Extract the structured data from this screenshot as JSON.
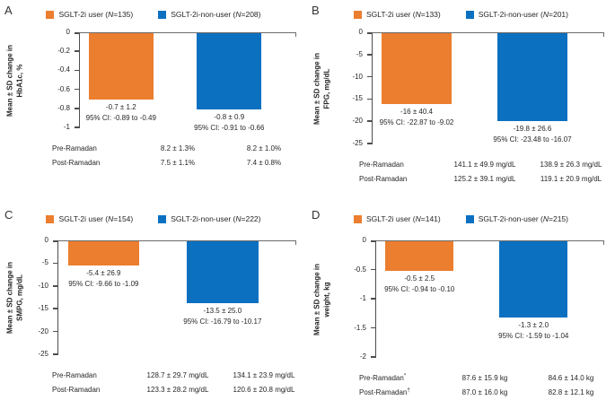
{
  "accent_colors": {
    "sglt2i_user": "#EB7E2F",
    "sglt2i_non_user": "#0B70C0",
    "axis": "#6b6b6b"
  },
  "chart_data": [
    {
      "panel": "A",
      "type": "bar",
      "title": "",
      "xlabel": "",
      "ylabel": "Mean ± SD change in HbA1c, %",
      "ylabel_lines": [
        "Mean ± SD change in",
        "HbA1c, %"
      ],
      "ylim": [
        0,
        -1
      ],
      "yticks": [
        0,
        -0.2,
        -0.4,
        -0.6,
        -0.8,
        -1
      ],
      "ytick_labels": [
        "0",
        "-0.2",
        "-0.4",
        "-0.6",
        "-0.8",
        "-1"
      ],
      "grid": false,
      "legend_position": "top",
      "categories": [
        "SGLT-2i user",
        "SGLT-2i-non-user"
      ],
      "series": [
        {
          "name": "SGLT-2i user",
          "n": "135",
          "color": "#EB7E2F",
          "value": -0.7,
          "sd": 1.2,
          "value_label": "-0.7 ± 1.2",
          "ci_label": "95% CI: -0.89 to -0.49"
        },
        {
          "name": "SGLT-2i-non-user",
          "n": "208",
          "color": "#0B70C0",
          "value": -0.8,
          "sd": 0.9,
          "value_label": "-0.8 ± 0.9",
          "ci_label": "95% CI: -0.91 to -0.66"
        }
      ],
      "table": {
        "rows": [
          {
            "label": "Pre-Ramadan",
            "values": [
              "8.2 ± 1.3%",
              "8.2 ± 1.0%"
            ]
          },
          {
            "label": "Post-Ramadan",
            "values": [
              "7.5 ± 1.1%",
              "7.4 ± 0.8%"
            ]
          }
        ]
      }
    },
    {
      "panel": "B",
      "type": "bar",
      "title": "",
      "xlabel": "",
      "ylabel": "Mean ± SD change in FPG, mg/dL",
      "ylabel_lines": [
        "Mean ± SD change in",
        "FPG, mg/dL"
      ],
      "ylim": [
        0,
        -25
      ],
      "yticks": [
        0,
        -5,
        -10,
        -15,
        -20,
        -25
      ],
      "ytick_labels": [
        "0",
        "-5",
        "-10",
        "-15",
        "-20",
        "-25"
      ],
      "grid": false,
      "legend_position": "top",
      "categories": [
        "SGLT-2i user",
        "SGLT-2i-non-user"
      ],
      "series": [
        {
          "name": "SGLT-2i user",
          "n": "133",
          "color": "#EB7E2F",
          "value": -16,
          "sd": 40.4,
          "value_label": "-16 ± 40.4",
          "ci_label": "95% CI: -22.87 to -9.02"
        },
        {
          "name": "SGLT-2i-non-user",
          "n": "201",
          "color": "#0B70C0",
          "value": -19.8,
          "sd": 26.6,
          "value_label": "-19.8 ± 26.6",
          "ci_label": "95% CI: -23.48 to -16.07"
        }
      ],
      "table": {
        "rows": [
          {
            "label": "Pre-Ramadan",
            "values": [
              "141.1 ± 49.9 mg/dL",
              "138.9 ± 26.3 mg/dL"
            ]
          },
          {
            "label": "Post-Ramadan",
            "values": [
              "125.2 ± 39.1 mg/dL",
              "119.1 ± 20.9 mg/dL"
            ]
          }
        ]
      }
    },
    {
      "panel": "C",
      "type": "bar",
      "title": "",
      "xlabel": "",
      "ylabel": "Mean ± SD change in SMPG, mg/dL",
      "ylabel_lines": [
        "Mean ± SD change in",
        "SMPG, mg/dL"
      ],
      "ylim": [
        0,
        -25
      ],
      "yticks": [
        0,
        -5,
        -10,
        -15,
        -20,
        -25
      ],
      "ytick_labels": [
        "0",
        "-5",
        "-10",
        "-15",
        "-20",
        "-25"
      ],
      "grid": false,
      "legend_position": "top",
      "categories": [
        "SGLT-2i user",
        "SGLT-2i-non-user"
      ],
      "series": [
        {
          "name": "SGLT-2i user",
          "n": "154",
          "color": "#EB7E2F",
          "value": -5.4,
          "sd": 26.9,
          "value_label": "-5.4 ± 26.9",
          "ci_label": "95% CI: -9.66 to -1.09"
        },
        {
          "name": "SGLT-2i-non-user",
          "n": "222",
          "color": "#0B70C0",
          "value": -13.5,
          "sd": 25.0,
          "value_label": "-13.5 ± 25.0",
          "ci_label": "95% CI: -16.79 to -10.17"
        }
      ],
      "table": {
        "rows": [
          {
            "label": "Pre-Ramadan",
            "values": [
              "128.7 ± 29.7 mg/dL",
              "134.1 ± 23.9 mg/dL"
            ]
          },
          {
            "label": "Post-Ramadan",
            "values": [
              "123.3 ± 28.2 mg/dL",
              "120.6 ± 20.8 mg/dL"
            ]
          }
        ]
      }
    },
    {
      "panel": "D",
      "type": "bar",
      "title": "",
      "xlabel": "",
      "ylabel": "Mean ± SD change in weight, kg",
      "ylabel_lines": [
        "Mean ± SD change in",
        "weight, kg"
      ],
      "ylim": [
        0,
        -2
      ],
      "yticks": [
        0,
        -0.5,
        -1,
        -1.5,
        -2
      ],
      "ytick_labels": [
        "0",
        "-0.5",
        "-1",
        "-1.5",
        "-2"
      ],
      "grid": false,
      "legend_position": "top",
      "categories": [
        "SGLT-2i user",
        "SGLT-2i-non-user"
      ],
      "series": [
        {
          "name": "SGLT-2i user",
          "n": "141",
          "color": "#EB7E2F",
          "value": -0.5,
          "sd": 2.5,
          "value_label": "-0.5 ± 2.5",
          "ci_label": "95% CI: -0.94 to -0.10"
        },
        {
          "name": "SGLT-2i-non-user",
          "n": "215",
          "color": "#0B70C0",
          "value": -1.3,
          "sd": 2.0,
          "value_label": "-1.3 ± 2.0",
          "ci_label": "95% CI: -1.59 to -1.04"
        }
      ],
      "table": {
        "rows": [
          {
            "label": "Pre-Ramadan*",
            "values": [
              "87.6 ± 15.9 kg",
              "84.6 ± 14.0 kg"
            ]
          },
          {
            "label": "Post-Ramadan†",
            "values": [
              "87.0 ± 16.0 kg",
              "82.8 ± 12.1 kg"
            ]
          }
        ]
      }
    }
  ]
}
